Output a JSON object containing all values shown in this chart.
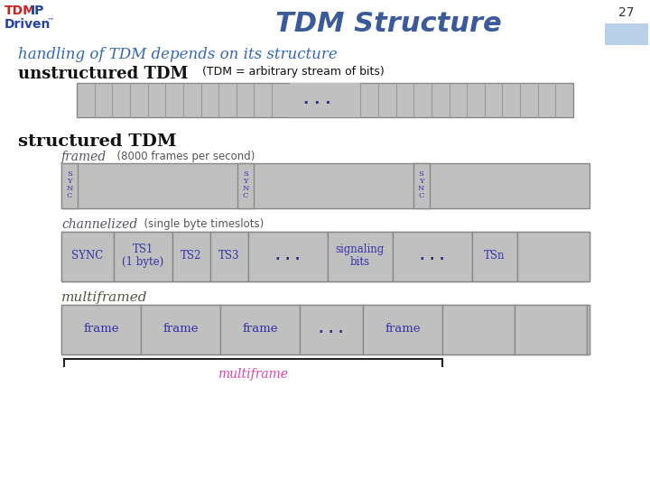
{
  "title": "TDM Structure",
  "subtitle": "handling of TDM depends on its structure",
  "bg_color": "#ffffff",
  "title_color": "#3a5a9a",
  "subtitle_color": "#3366bb",
  "box_fill": "#c0c0c0",
  "box_edge": "#888888",
  "slide_number": "27",
  "slide_number_bg": "#b8d0e8",
  "text_blue": "#3333aa",
  "label_black": "#111111",
  "dots_color": "#333388",
  "multiframe_color": "#dd44aa",
  "bracket_color": "#222222"
}
